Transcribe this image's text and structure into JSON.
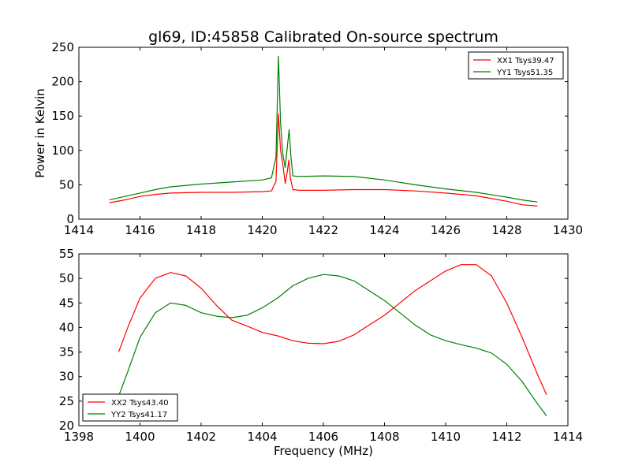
{
  "title": "gl69, ID:45858 Calibrated On-source spectrum",
  "colors": {
    "red": "#ff0000",
    "green": "#008000",
    "axes": "#000000"
  },
  "chart_data": [
    {
      "type": "line",
      "xlabel": "",
      "ylabel": "Power in Kelvin",
      "xlim": [
        1414,
        1430
      ],
      "ylim": [
        0,
        250
      ],
      "xticks": [
        1414,
        1416,
        1418,
        1420,
        1422,
        1424,
        1426,
        1428,
        1430
      ],
      "yticks": [
        0,
        50,
        100,
        150,
        200,
        250
      ],
      "legend_position": "top-right",
      "series": [
        {
          "name": "XX1 Tsys39.47",
          "color": "#ff0000",
          "x": [
            1415.0,
            1415.5,
            1416.0,
            1416.5,
            1417.0,
            1418.0,
            1419.0,
            1420.0,
            1420.3,
            1420.45,
            1420.53,
            1420.6,
            1420.67,
            1420.75,
            1420.82,
            1420.87,
            1420.92,
            1421.0,
            1421.2,
            1422.0,
            1423.0,
            1424.0,
            1425.0,
            1426.0,
            1427.0,
            1428.0,
            1428.5,
            1429.0
          ],
          "y": [
            24,
            28,
            33,
            36,
            38,
            39,
            39,
            40,
            41,
            55,
            153,
            100,
            80,
            52,
            70,
            86,
            60,
            43,
            42,
            42,
            43,
            43,
            41,
            38,
            34,
            26,
            21,
            19
          ]
        },
        {
          "name": "YY1 Tsys51.35",
          "color": "#008000",
          "x": [
            1415.0,
            1415.5,
            1416.0,
            1416.5,
            1417.0,
            1418.0,
            1419.0,
            1420.0,
            1420.3,
            1420.45,
            1420.53,
            1420.6,
            1420.67,
            1420.75,
            1420.83,
            1420.88,
            1420.94,
            1421.0,
            1421.2,
            1422.0,
            1423.0,
            1424.0,
            1425.0,
            1426.0,
            1427.0,
            1428.0,
            1428.5,
            1429.0
          ],
          "y": [
            28,
            33,
            38,
            43,
            47,
            51,
            54,
            57,
            60,
            90,
            237,
            140,
            95,
            75,
            110,
            130,
            90,
            63,
            62,
            63,
            62,
            57,
            50,
            44,
            39,
            32,
            28,
            25
          ]
        }
      ]
    },
    {
      "type": "line",
      "xlabel": "Frequency (MHz)",
      "ylabel": "",
      "xlim": [
        1398,
        1414
      ],
      "ylim": [
        20,
        55
      ],
      "xticks": [
        1398,
        1400,
        1402,
        1404,
        1406,
        1408,
        1410,
        1412,
        1414
      ],
      "yticks": [
        20,
        25,
        30,
        35,
        40,
        45,
        50,
        55
      ],
      "legend_position": "bottom-left",
      "series": [
        {
          "name": "XX2 Tsys43.40",
          "color": "#ff0000",
          "x": [
            1399.3,
            1399.6,
            1400.0,
            1400.5,
            1401.0,
            1401.5,
            1402.0,
            1402.5,
            1403.0,
            1403.5,
            1404.0,
            1404.5,
            1405.0,
            1405.5,
            1406.0,
            1406.5,
            1407.0,
            1407.5,
            1408.0,
            1408.5,
            1409.0,
            1409.5,
            1410.0,
            1410.5,
            1411.0,
            1411.5,
            1412.0,
            1412.5,
            1413.0,
            1413.3
          ],
          "y": [
            35,
            40,
            46,
            50,
            51.2,
            50.5,
            48,
            44.5,
            41.5,
            40.3,
            39,
            38.3,
            37.3,
            36.8,
            36.7,
            37.2,
            38.5,
            40.5,
            42.5,
            45,
            47.5,
            49.5,
            51.5,
            52.8,
            52.8,
            50.5,
            45,
            38,
            30.5,
            26.3
          ]
        },
        {
          "name": "YY2 Tsys41.17",
          "color": "#008000",
          "x": [
            1399.3,
            1399.6,
            1400.0,
            1400.5,
            1401.0,
            1401.5,
            1402.0,
            1402.5,
            1403.0,
            1403.5,
            1404.0,
            1404.5,
            1405.0,
            1405.5,
            1406.0,
            1406.5,
            1407.0,
            1407.5,
            1408.0,
            1408.5,
            1409.0,
            1409.5,
            1410.0,
            1410.5,
            1411.0,
            1411.5,
            1412.0,
            1412.5,
            1413.0,
            1413.3
          ],
          "y": [
            26,
            31,
            38,
            43,
            45,
            44.5,
            43,
            42.3,
            42,
            42.5,
            44,
            46,
            48.5,
            50,
            50.8,
            50.5,
            49.5,
            47.5,
            45.5,
            43,
            40.5,
            38.5,
            37.3,
            36.5,
            35.8,
            34.8,
            32.5,
            29,
            24.5,
            22
          ]
        }
      ]
    }
  ]
}
